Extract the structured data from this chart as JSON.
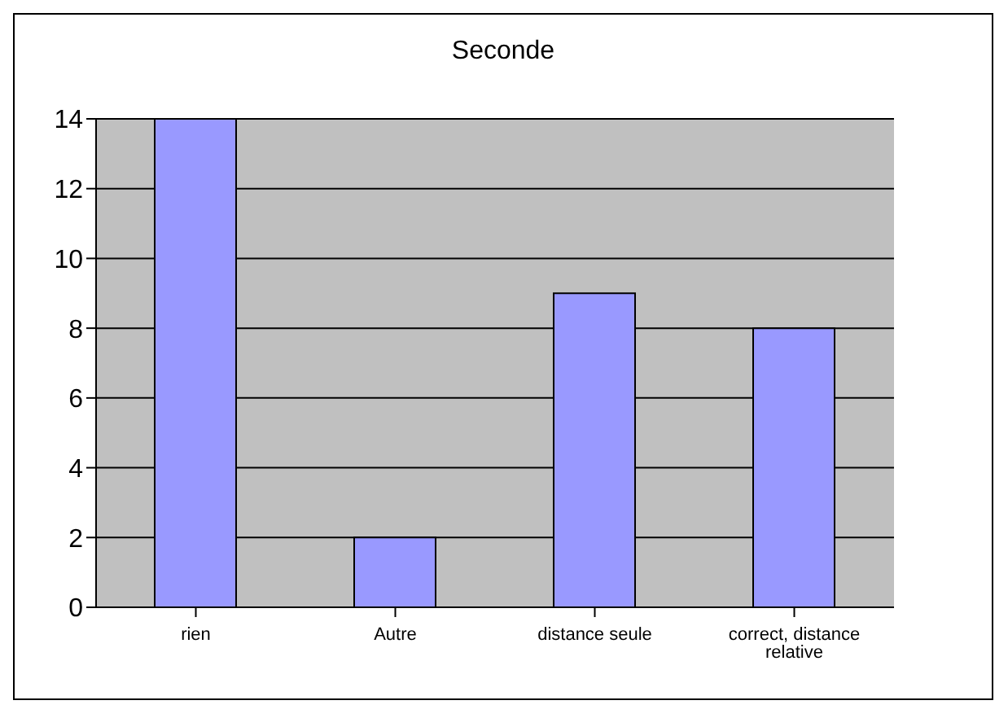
{
  "chart_data": {
    "type": "bar",
    "title": "Seconde",
    "categories": [
      "rien",
      "Autre",
      "distance seule",
      "correct, distance relative"
    ],
    "values": [
      14,
      2,
      9,
      8
    ],
    "color": "#9999ff",
    "ylim": [
      0,
      14
    ],
    "yticks": [
      0,
      2,
      4,
      6,
      8,
      10,
      12,
      14
    ],
    "grid": "y"
  }
}
